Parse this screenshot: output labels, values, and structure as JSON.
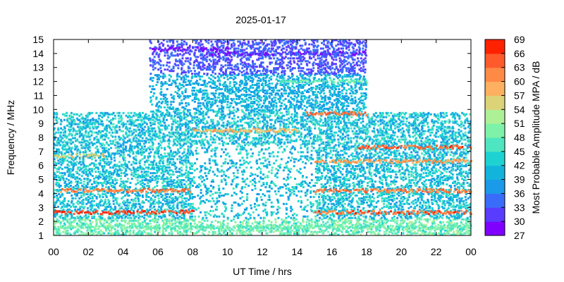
{
  "chart_data": {
    "type": "heatmap",
    "title": "2025-01-17",
    "xlabel": "UT Time / hrs",
    "ylabel": "Frequency / MHz",
    "xlim": [
      0,
      24
    ],
    "ylim": [
      1,
      15
    ],
    "x_ticks": [
      "00",
      "02",
      "04",
      "06",
      "08",
      "10",
      "12",
      "14",
      "16",
      "18",
      "20",
      "22",
      "00"
    ],
    "y_ticks": [
      "1",
      "2",
      "3",
      "4",
      "5",
      "6",
      "7",
      "8",
      "9",
      "10",
      "11",
      "12",
      "13",
      "14",
      "15"
    ],
    "colorbar": {
      "label": "Most Probable Amplitude MPA / dB",
      "range": [
        27,
        69
      ],
      "ticks": [
        "27",
        "30",
        "33",
        "36",
        "39",
        "42",
        "45",
        "48",
        "51",
        "54",
        "57",
        "60",
        "63",
        "66",
        "69"
      ],
      "colors": [
        "#8000ff",
        "#5a3cff",
        "#3a6cfa",
        "#1a9ae8",
        "#12b4dc",
        "#1ed2d2",
        "#4ee6c0",
        "#7ef2a8",
        "#aef096",
        "#dcd278",
        "#fcb060",
        "#ff8a46",
        "#ff5a2c",
        "#ff2200"
      ]
    },
    "coverage_upper_mhz": [
      {
        "start_hr": 0.0,
        "end_hr": 5.5,
        "max_mhz": 9.8
      },
      {
        "start_hr": 5.5,
        "end_hr": 17.9,
        "max_mhz": 15.0
      },
      {
        "start_hr": 17.9,
        "end_hr": 24.0,
        "max_mhz": 9.8
      }
    ],
    "bands": [
      {
        "freq_mhz": 2.65,
        "start_hr": 0.0,
        "end_hr": 8.0,
        "mpa_db": 66
      },
      {
        "freq_mhz": 2.65,
        "start_hr": 15.0,
        "end_hr": 24.0,
        "mpa_db": 64
      },
      {
        "freq_mhz": 4.2,
        "start_hr": 0.3,
        "end_hr": 8.0,
        "mpa_db": 62
      },
      {
        "freq_mhz": 4.2,
        "start_hr": 15.0,
        "end_hr": 24.0,
        "mpa_db": 62
      },
      {
        "freq_mhz": 6.7,
        "start_hr": 0.0,
        "end_hr": 3.0,
        "mpa_db": 56
      },
      {
        "freq_mhz": 7.3,
        "start_hr": 17.5,
        "end_hr": 24.0,
        "mpa_db": 64
      },
      {
        "freq_mhz": 6.3,
        "start_hr": 15.0,
        "end_hr": 24.0,
        "mpa_db": 60
      },
      {
        "freq_mhz": 8.5,
        "start_hr": 8.0,
        "end_hr": 14.0,
        "mpa_db": 58
      },
      {
        "freq_mhz": 9.7,
        "start_hr": 14.5,
        "end_hr": 18.0,
        "mpa_db": 63
      },
      {
        "freq_mhz": 12.0,
        "start_hr": 13.0,
        "end_hr": 18.0,
        "mpa_db": 48
      },
      {
        "freq_mhz": 14.3,
        "start_hr": 5.5,
        "end_hr": 10.0,
        "mpa_db": 29
      },
      {
        "freq_mhz": 14.0,
        "start_hr": 9.0,
        "end_hr": 17.9,
        "mpa_db": 31
      },
      {
        "freq_mhz": 1.6,
        "start_hr": 0.0,
        "end_hr": 24.0,
        "mpa_db": 48
      }
    ]
  }
}
